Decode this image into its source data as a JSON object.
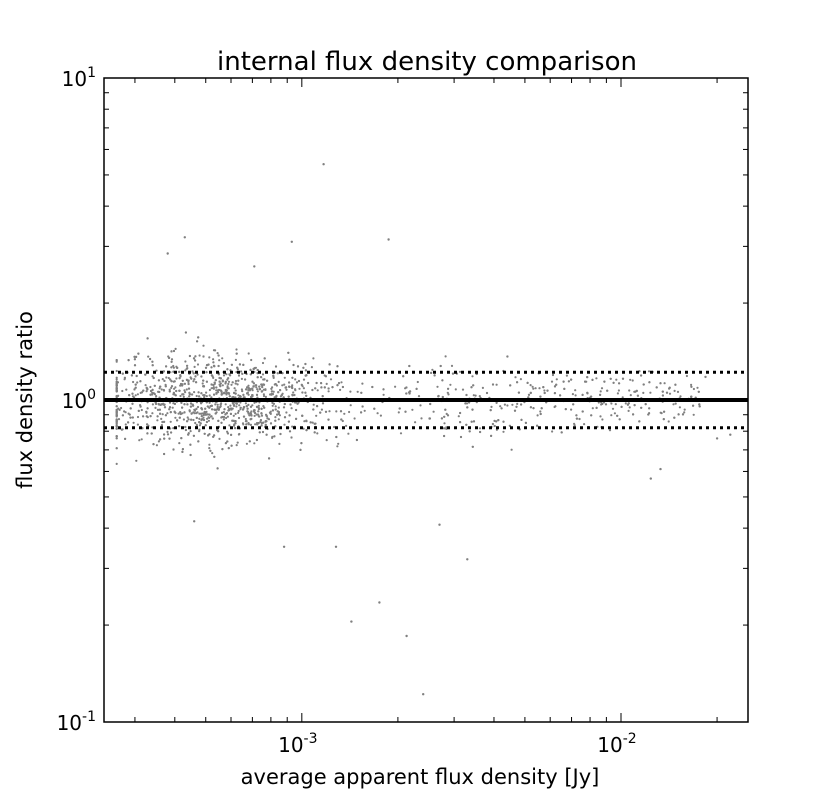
{
  "chart_data": {
    "type": "scatter",
    "title": "internal flux density comparison",
    "xlabel": "average apparent flux density [Jy]",
    "ylabel": "flux density ratio",
    "xscale": "log",
    "yscale": "log",
    "xlim": [
      0.00024,
      0.025
    ],
    "ylim": [
      0.1,
      10
    ],
    "x_ticks": [
      {
        "value": 0.001,
        "base": "10",
        "exp": "-3"
      },
      {
        "value": 0.01,
        "base": "10",
        "exp": "-2"
      }
    ],
    "y_ticks": [
      {
        "value": 0.1,
        "base": "10",
        "exp": "-1"
      },
      {
        "value": 1,
        "base": "10",
        "exp": "0"
      },
      {
        "value": 10,
        "base": "10",
        "exp": "1"
      }
    ],
    "reference_lines": [
      {
        "y": 1.0,
        "style": "solid"
      },
      {
        "y": 1.22,
        "style": "dotted"
      },
      {
        "y": 0.82,
        "style": "dotted"
      }
    ],
    "grid": false,
    "point_color": "#808080",
    "point_count": 2200,
    "outliers": [
      {
        "x": 0.00117,
        "y": 5.4
      },
      {
        "x": 0.00043,
        "y": 3.2
      },
      {
        "x": 0.00093,
        "y": 3.1
      },
      {
        "x": 0.00187,
        "y": 3.15
      },
      {
        "x": 0.00038,
        "y": 2.85
      },
      {
        "x": 0.00071,
        "y": 2.6
      },
      {
        "x": 0.00046,
        "y": 0.42
      },
      {
        "x": 0.00088,
        "y": 0.35
      },
      {
        "x": 0.00128,
        "y": 0.35
      },
      {
        "x": 0.0027,
        "y": 0.41
      },
      {
        "x": 0.0033,
        "y": 0.32
      },
      {
        "x": 0.00175,
        "y": 0.235
      },
      {
        "x": 0.00143,
        "y": 0.205
      },
      {
        "x": 0.00213,
        "y": 0.185
      },
      {
        "x": 0.0024,
        "y": 0.122
      },
      {
        "x": 0.0124,
        "y": 0.57
      },
      {
        "x": 0.0133,
        "y": 0.61
      },
      {
        "x": 0.022,
        "y": 0.78
      },
      {
        "x": 0.02,
        "y": 0.76
      },
      {
        "x": 0.0184,
        "y": 1.18
      }
    ]
  }
}
